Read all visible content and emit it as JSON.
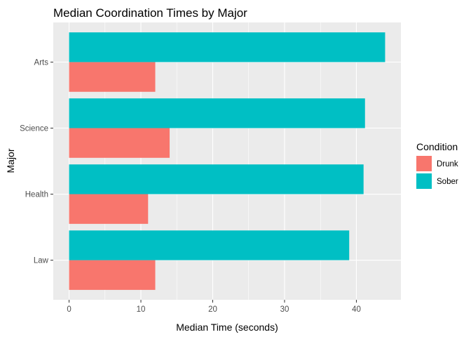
{
  "chart_data": {
    "type": "bar",
    "orientation": "horizontal",
    "title": "Median Coordination Times by Major",
    "xlabel": "Median Time (seconds)",
    "ylabel": "Major",
    "categories": [
      "Law",
      "Health",
      "Science",
      "Arts"
    ],
    "series": [
      {
        "name": "Drunk",
        "values": [
          12,
          11,
          14,
          12
        ],
        "color": "#F8766D"
      },
      {
        "name": "Sober",
        "values": [
          39,
          41,
          41.2,
          44
        ],
        "color": "#00BFC4"
      }
    ],
    "xlim": [
      -2.2,
      46.2
    ],
    "xticks": [
      0,
      10,
      20,
      30,
      40
    ],
    "grid": true,
    "legend": {
      "title": "Condition",
      "position": "right"
    }
  }
}
